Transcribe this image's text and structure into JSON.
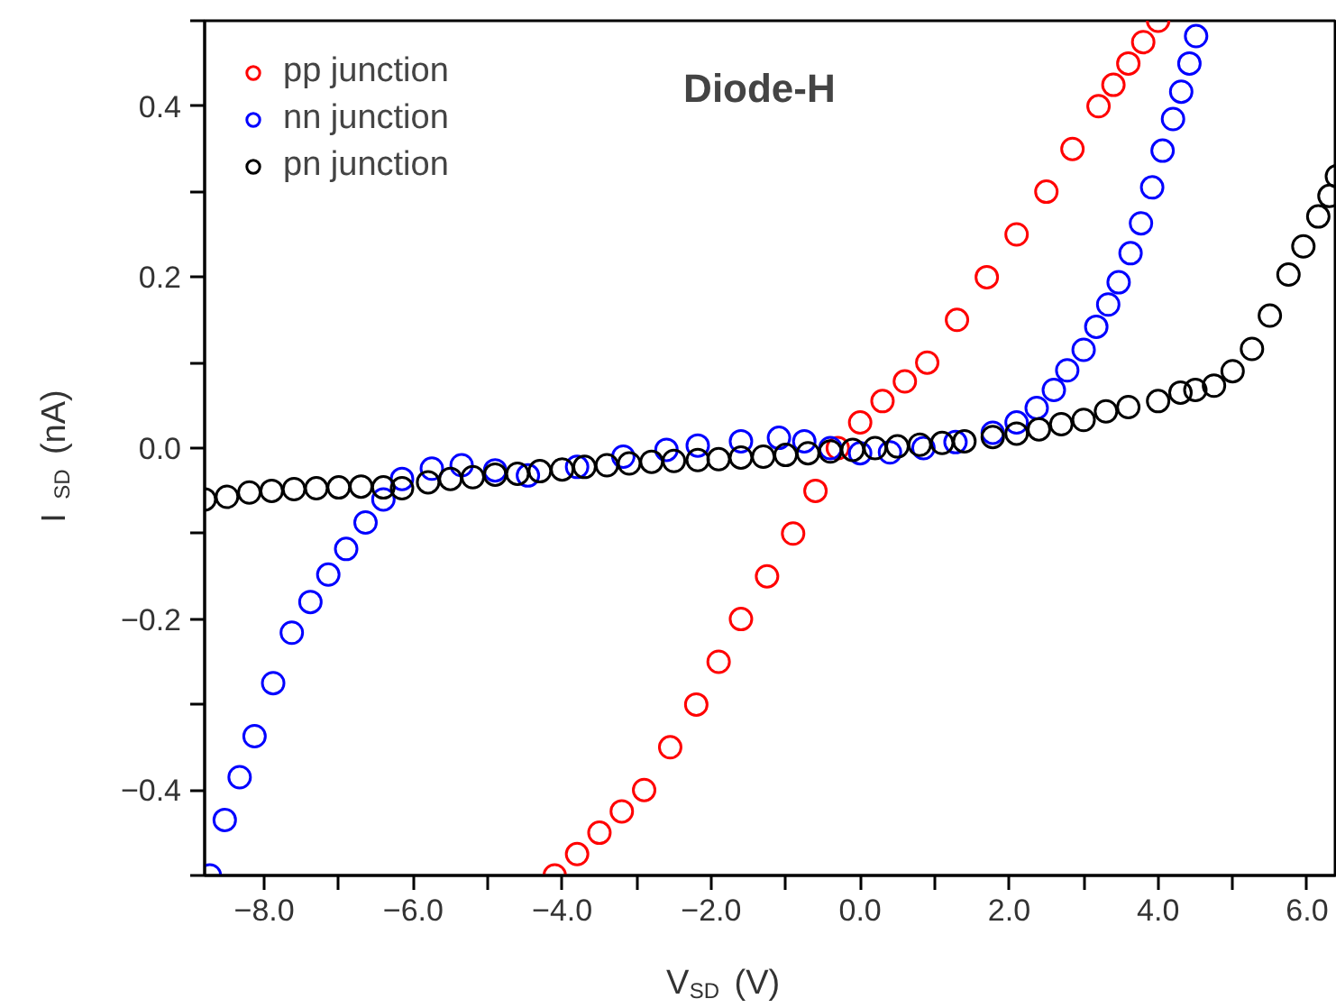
{
  "chart_data": {
    "type": "scatter",
    "title": "Diode-H",
    "xlabel": "V$_{SD}$ (V)",
    "ylabel": "I$_{SD}$ (nA)",
    "xlim": [
      -8.8,
      6.4
    ],
    "ylim": [
      -0.5,
      0.5
    ],
    "xticks": [
      {
        "value": -8,
        "label": "−8.0"
      },
      {
        "value": -7,
        "label": null
      },
      {
        "value": -6,
        "label": "−6.0"
      },
      {
        "value": -5,
        "label": null
      },
      {
        "value": -4,
        "label": "−4.0"
      },
      {
        "value": -3,
        "label": null
      },
      {
        "value": -2,
        "label": "−2.0"
      },
      {
        "value": -1,
        "label": null
      },
      {
        "value": 0,
        "label": "0.0"
      },
      {
        "value": 1,
        "label": null
      },
      {
        "value": 2,
        "label": "2.0"
      },
      {
        "value": 3,
        "label": null
      },
      {
        "value": 4,
        "label": "4.0"
      },
      {
        "value": 5,
        "label": null
      },
      {
        "value": 6,
        "label": "6.0"
      }
    ],
    "yticks": [
      {
        "value": -0.5,
        "label": null
      },
      {
        "value": -0.4,
        "label": "−0.4"
      },
      {
        "value": -0.3,
        "label": null
      },
      {
        "value": -0.2,
        "label": "−0.2"
      },
      {
        "value": -0.1,
        "label": null
      },
      {
        "value": 0,
        "label": "0.0"
      },
      {
        "value": 0.1,
        "label": null
      },
      {
        "value": 0.2,
        "label": "0.2"
      },
      {
        "value": 0.3,
        "label": null
      },
      {
        "value": 0.4,
        "label": "0.4"
      },
      {
        "value": 0.5,
        "label": null
      }
    ],
    "grid": false,
    "legend": "top left",
    "marker": "circle",
    "series": [
      {
        "name": "pp junction",
        "color": "#ff0000",
        "x": [
          -4.1,
          -3.8,
          -3.5,
          -3.2,
          -2.9,
          -2.55,
          -2.2,
          -1.9,
          -1.6,
          -1.25,
          -0.9,
          -0.6,
          -0.3,
          0.0,
          0.3,
          0.6,
          0.9,
          1.3,
          1.7,
          2.1,
          2.5,
          2.85,
          3.2,
          3.4,
          3.6,
          3.8,
          4.0
        ],
        "values": [
          -0.5,
          -0.475,
          -0.45,
          -0.425,
          -0.4,
          -0.35,
          -0.3,
          -0.25,
          -0.2,
          -0.15,
          -0.1,
          -0.05,
          0.0,
          0.03,
          0.055,
          0.078,
          0.1,
          0.15,
          0.2,
          0.25,
          0.3,
          0.35,
          0.4,
          0.425,
          0.45,
          0.475,
          0.5
        ]
      },
      {
        "name": "nn junction",
        "color": "#0000ff",
        "x": [
          -8.73,
          -8.53,
          -8.33,
          -8.13,
          -7.88,
          -7.63,
          -7.38,
          -7.14,
          -6.9,
          -6.64,
          -6.4,
          -6.15,
          -5.75,
          -5.35,
          -4.9,
          -4.46,
          -3.8,
          -3.18,
          -2.6,
          -2.18,
          -1.6,
          -1.09,
          -0.75,
          -0.4,
          0.0,
          0.4,
          0.85,
          1.28,
          1.78,
          2.1,
          2.37,
          2.6,
          2.78,
          3.0,
          3.17,
          3.33,
          3.47,
          3.63,
          3.77,
          3.92,
          4.06,
          4.2,
          4.31,
          4.42,
          4.51
        ],
        "values": [
          -0.5,
          -0.435,
          -0.385,
          -0.337,
          -0.275,
          -0.216,
          -0.18,
          -0.148,
          -0.118,
          -0.087,
          -0.06,
          -0.036,
          -0.024,
          -0.02,
          -0.026,
          -0.032,
          -0.022,
          -0.01,
          -0.002,
          0.003,
          0.008,
          0.012,
          0.008,
          0.0,
          -0.006,
          -0.005,
          0.0,
          0.007,
          0.018,
          0.03,
          0.047,
          0.068,
          0.091,
          0.115,
          0.142,
          0.168,
          0.194,
          0.228,
          0.263,
          0.305,
          0.348,
          0.385,
          0.417,
          0.45,
          0.482
        ]
      },
      {
        "name": "pn junction",
        "color": "#000000",
        "x": [
          -8.8,
          -8.5,
          -8.2,
          -7.9,
          -7.6,
          -7.3,
          -7.0,
          -6.7,
          -6.4,
          -6.15,
          -5.8,
          -5.5,
          -5.2,
          -4.9,
          -4.6,
          -4.3,
          -4.0,
          -3.7,
          -3.4,
          -3.1,
          -2.8,
          -2.5,
          -2.18,
          -1.9,
          -1.6,
          -1.3,
          -1.0,
          -0.7,
          -0.4,
          -0.1,
          0.2,
          0.5,
          0.8,
          1.1,
          1.4,
          1.78,
          2.1,
          2.4,
          2.7,
          3.0,
          3.3,
          3.6,
          4.0,
          4.3,
          4.5,
          4.75,
          5.0,
          5.26,
          5.5,
          5.75,
          5.95,
          6.15,
          6.3,
          6.4
        ],
        "values": [
          -0.06,
          -0.057,
          -0.052,
          -0.05,
          -0.048,
          -0.047,
          -0.046,
          -0.045,
          -0.046,
          -0.047,
          -0.04,
          -0.036,
          -0.034,
          -0.031,
          -0.03,
          -0.027,
          -0.025,
          -0.022,
          -0.02,
          -0.018,
          -0.016,
          -0.015,
          -0.014,
          -0.013,
          -0.011,
          -0.01,
          -0.008,
          -0.006,
          -0.004,
          -0.002,
          0.0,
          0.002,
          0.004,
          0.006,
          0.008,
          0.013,
          0.017,
          0.022,
          0.028,
          0.033,
          0.043,
          0.048,
          0.055,
          0.065,
          0.068,
          0.073,
          0.09,
          0.116,
          0.155,
          0.203,
          0.236,
          0.271,
          0.295,
          0.318
        ]
      }
    ]
  }
}
